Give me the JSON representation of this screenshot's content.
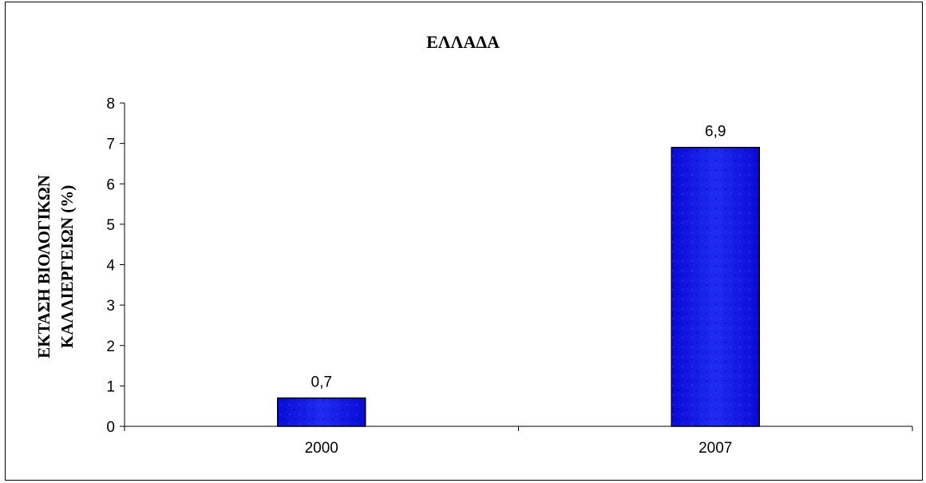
{
  "chart_data": {
    "type": "bar",
    "title": "ΕΛΛΑΔΑ",
    "xlabel": "",
    "ylabel_lines": [
      "ΕΚΤΑΣΗ ΒΙΟΛΟΓΙΚΩΝ",
      "ΚΑΛΛΙΕΡΓΕΙΩΝ (%)"
    ],
    "categories": [
      "2000",
      "2007"
    ],
    "values": [
      0.7,
      6.9
    ],
    "data_labels": [
      "0,7",
      "6,9"
    ],
    "ylim": [
      0,
      8
    ],
    "yticks": [
      0,
      1,
      2,
      3,
      4,
      5,
      6,
      7,
      8
    ],
    "grid": false,
    "legend": "none",
    "bar_color": "#0000ff"
  }
}
